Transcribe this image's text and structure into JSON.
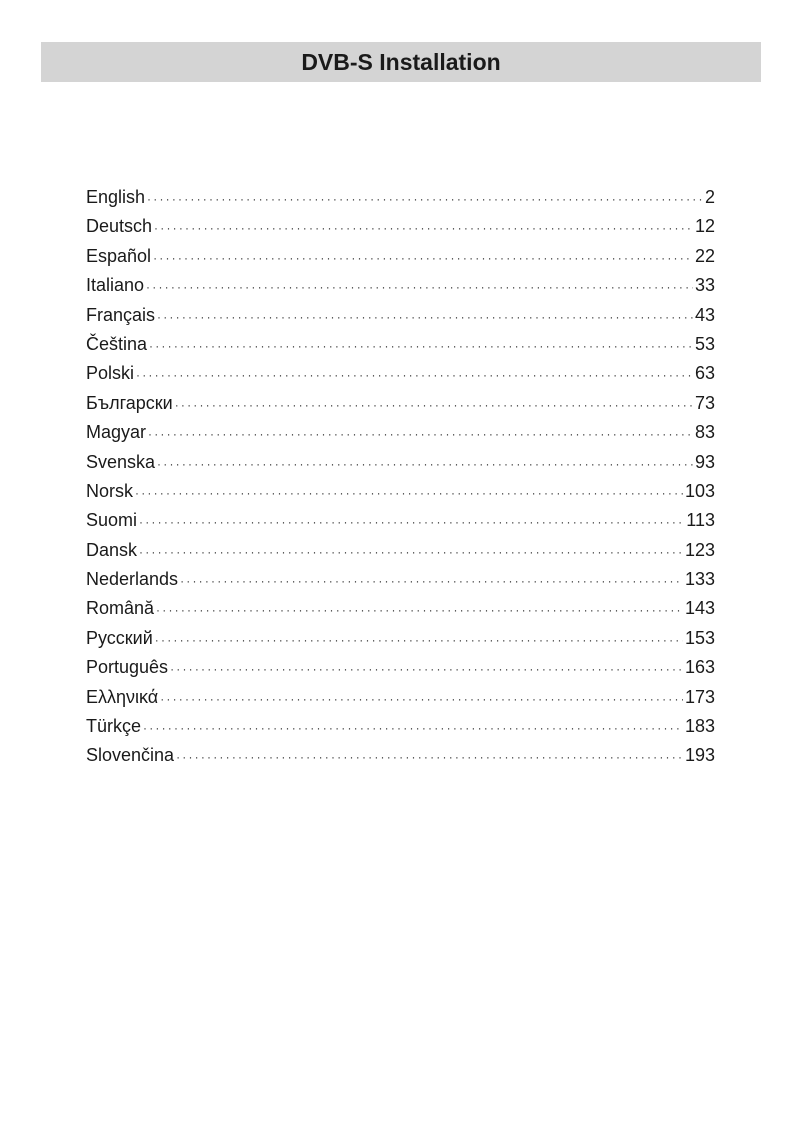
{
  "header": {
    "title": "DVB-S Installation"
  },
  "toc": [
    {
      "label": "English",
      "page": "2"
    },
    {
      "label": "Deutsch",
      "page": "12"
    },
    {
      "label": "Español",
      "page": "22"
    },
    {
      "label": "Italiano",
      "page": "33"
    },
    {
      "label": "Français",
      "page": "43"
    },
    {
      "label": "Čeština",
      "page": "53"
    },
    {
      "label": "Polski",
      "page": "63"
    },
    {
      "label": "Български",
      "page": "73"
    },
    {
      "label": "Magyar",
      "page": "83"
    },
    {
      "label": "Svenska",
      "page": "93"
    },
    {
      "label": "Norsk",
      "page": "103"
    },
    {
      "label": "Suomi",
      "page": "113"
    },
    {
      "label": "Dansk",
      "page": "123"
    },
    {
      "label": "Nederlands",
      "page": "133"
    },
    {
      "label": "Română",
      "page": "143"
    },
    {
      "label": "Русский",
      "page": "153"
    },
    {
      "label": "Português",
      "page": "163"
    },
    {
      "label": "Ελληνικά",
      "page": "173"
    },
    {
      "label": "Türkçe",
      "page": "183"
    },
    {
      "label": "Slovenčina",
      "page": "193"
    }
  ]
}
